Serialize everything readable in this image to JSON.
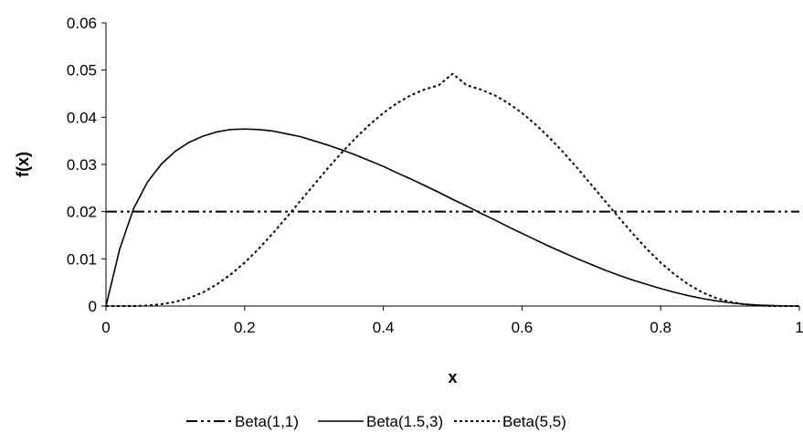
{
  "chart_data": {
    "type": "line",
    "title": "",
    "xlabel": "x",
    "ylabel": "f(x)",
    "xlim": [
      0,
      1
    ],
    "ylim": [
      0,
      0.06
    ],
    "x_ticks": [
      "0",
      "0.2",
      "0.4",
      "0.6",
      "0.8",
      "1"
    ],
    "y_ticks": [
      "0",
      "0.01",
      "0.02",
      "0.03",
      "0.04",
      "0.05",
      "0.06"
    ],
    "grid": false,
    "legend_position": "bottom",
    "x": [
      0,
      0.02,
      0.04,
      0.06,
      0.08,
      0.1,
      0.12,
      0.14,
      0.16,
      0.18,
      0.2,
      0.22,
      0.24,
      0.26,
      0.28,
      0.3,
      0.32,
      0.34,
      0.36,
      0.38,
      0.4,
      0.42,
      0.44,
      0.46,
      0.48,
      0.5,
      0.52,
      0.54,
      0.56,
      0.58,
      0.6,
      0.62,
      0.64,
      0.66,
      0.68,
      0.7,
      0.72,
      0.74,
      0.76,
      0.78,
      0.8,
      0.82,
      0.84,
      0.86,
      0.88,
      0.9,
      0.92,
      0.94,
      0.96,
      0.98,
      1
    ],
    "series": [
      {
        "name": "Beta(1,1)",
        "color": "#000000",
        "dash": "dash-dot-dot",
        "values": [
          0.02,
          0.02,
          0.02,
          0.02,
          0.02,
          0.02,
          0.02,
          0.02,
          0.02,
          0.02,
          0.02,
          0.02,
          0.02,
          0.02,
          0.02,
          0.02,
          0.02,
          0.02,
          0.02,
          0.02,
          0.02,
          0.02,
          0.02,
          0.02,
          0.02,
          0.02,
          0.02,
          0.02,
          0.02,
          0.02,
          0.02,
          0.02,
          0.02,
          0.02,
          0.02,
          0.02,
          0.02,
          0.02,
          0.02,
          0.02,
          0.02,
          0.02,
          0.02,
          0.02,
          0.02,
          0.02,
          0.02,
          0.02,
          0.02,
          0.02,
          0.02
        ]
      },
      {
        "name": "Beta(1.5,3)",
        "color": "#000000",
        "dash": "solid",
        "values": [
          0,
          0.0122,
          0.0207,
          0.0263,
          0.0301,
          0.0328,
          0.0347,
          0.036,
          0.0369,
          0.0374,
          0.0375,
          0.0374,
          0.0371,
          0.0365,
          0.0359,
          0.035,
          0.0341,
          0.0331,
          0.032,
          0.0308,
          0.0296,
          0.0282,
          0.0269,
          0.0255,
          0.0241,
          0.0226,
          0.0212,
          0.0197,
          0.0183,
          0.0168,
          0.0154,
          0.014,
          0.0126,
          0.0113,
          0.01,
          0.0088,
          0.0076,
          0.0065,
          0.0055,
          0.0046,
          0.0037,
          0.0029,
          0.0022,
          0.0016,
          0.0011,
          0.0007,
          0.0004,
          0.0002,
          0.0001,
          0.0,
          0
        ]
      },
      {
        "name": "Beta(5,5)",
        "color": "#000000",
        "dash": "dotted",
        "values": [
          0,
          0.0,
          0.0,
          0.0001,
          0.0004,
          0.0009,
          0.0017,
          0.0029,
          0.0046,
          0.0067,
          0.0092,
          0.0121,
          0.0153,
          0.0187,
          0.0222,
          0.0257,
          0.0292,
          0.0325,
          0.0356,
          0.0384,
          0.0409,
          0.043,
          0.0447,
          0.0459,
          0.0468,
          0.0492,
          0.0468,
          0.0459,
          0.0447,
          0.043,
          0.0409,
          0.0384,
          0.0356,
          0.0325,
          0.0292,
          0.0257,
          0.0222,
          0.0187,
          0.0153,
          0.0121,
          0.0092,
          0.0067,
          0.0046,
          0.0029,
          0.0017,
          0.0009,
          0.0004,
          0.0001,
          0.0,
          0.0,
          0
        ]
      }
    ]
  }
}
